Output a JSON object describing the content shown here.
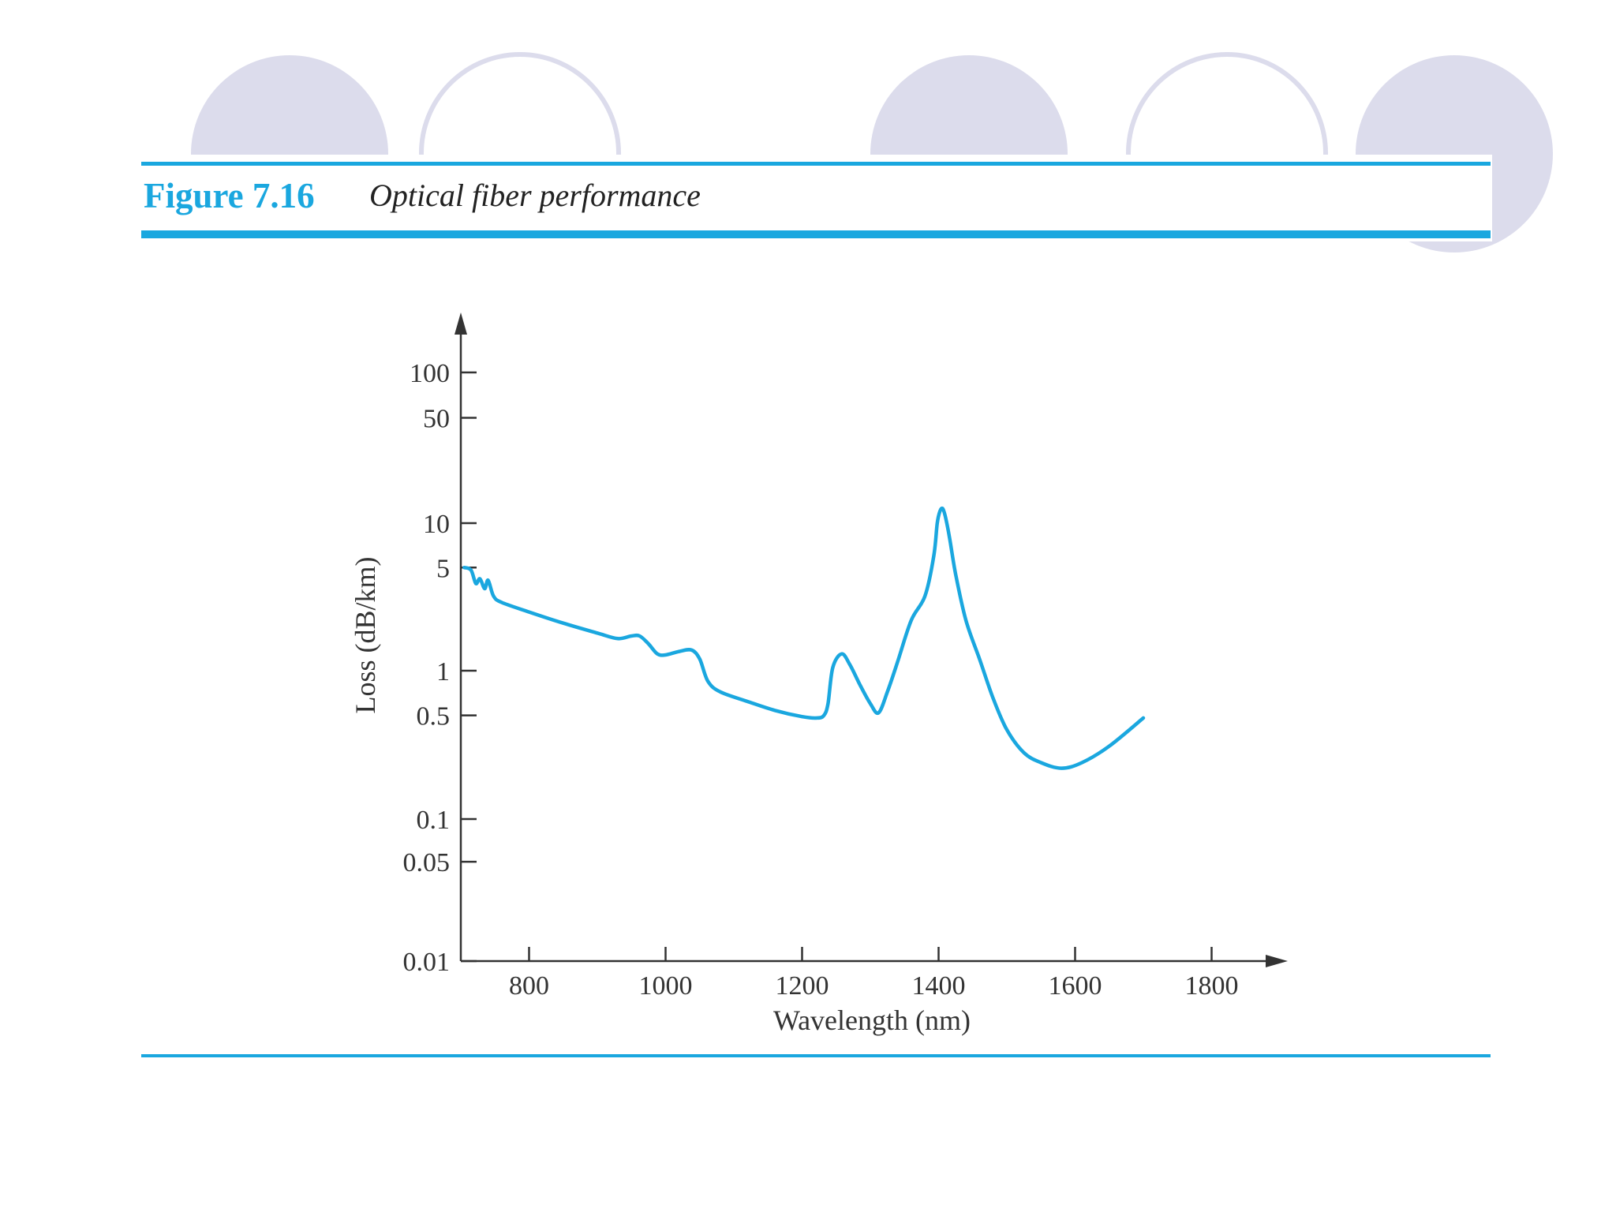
{
  "figure": {
    "number": "Figure 7.16",
    "caption": "Optical fiber performance"
  },
  "colors": {
    "accent": "#1aa7df",
    "decor_circle": "#dcdcec",
    "axis": "#333333",
    "curve": "#1aa7df"
  },
  "chart_data": {
    "type": "line",
    "title": "Optical fiber performance",
    "xlabel": "Wavelength (nm)",
    "ylabel": "Loss (dB/km)",
    "xlim": [
      700,
      1850
    ],
    "ylim": [
      0.01,
      200
    ],
    "yscale": "log",
    "xticks": [
      800,
      1000,
      1200,
      1400,
      1600,
      1800
    ],
    "xtick_labels": [
      "800",
      "1000",
      "1200",
      "1400",
      "1600",
      "1800"
    ],
    "yticks": [
      100,
      50,
      10,
      5,
      1,
      0.5,
      0.1,
      0.05,
      0.01
    ],
    "ytick_labels": [
      "100",
      "50",
      "10",
      "5",
      "1",
      "0.5",
      "0.1",
      "0.05",
      "0.01"
    ],
    "grid": false,
    "series": [
      {
        "name": "Loss",
        "x": [
          705,
          715,
          722,
          728,
          735,
          740,
          748,
          760,
          800,
          850,
          900,
          930,
          950,
          962,
          975,
          988,
          1000,
          1020,
          1038,
          1050,
          1062,
          1080,
          1120,
          1160,
          1200,
          1222,
          1232,
          1238,
          1245,
          1258,
          1270,
          1285,
          1300,
          1312,
          1325,
          1340,
          1360,
          1380,
          1393,
          1398,
          1402,
          1406,
          1410,
          1416,
          1425,
          1440,
          1460,
          1480,
          1500,
          1525,
          1550,
          1580,
          1610,
          1650,
          1700
        ],
        "values": [
          5.0,
          4.8,
          3.9,
          4.2,
          3.6,
          4.1,
          3.2,
          2.9,
          2.5,
          2.1,
          1.8,
          1.65,
          1.72,
          1.72,
          1.52,
          1.3,
          1.28,
          1.35,
          1.38,
          1.2,
          0.85,
          0.72,
          0.62,
          0.54,
          0.49,
          0.48,
          0.5,
          0.6,
          1.05,
          1.3,
          1.1,
          0.8,
          0.6,
          0.52,
          0.72,
          1.15,
          2.2,
          3.2,
          6.0,
          10.0,
          12.0,
          12.5,
          11.0,
          8.0,
          4.5,
          2.2,
          1.2,
          0.65,
          0.4,
          0.28,
          0.24,
          0.22,
          0.24,
          0.31,
          0.48
        ]
      }
    ]
  }
}
